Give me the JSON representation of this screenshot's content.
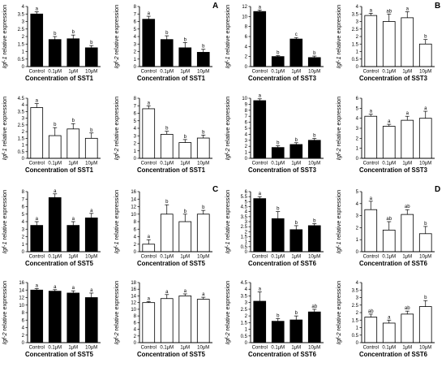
{
  "group_labels": [
    "A",
    "B",
    "C",
    "D"
  ],
  "chart_data": [
    {
      "type": "bar",
      "fill": "#000000",
      "categories": [
        "Control",
        "0.1μM",
        "1μM",
        "10μM"
      ],
      "values": [
        3.5,
        1.8,
        1.85,
        1.25
      ],
      "errors": [
        0.15,
        0.2,
        0.25,
        0.15
      ],
      "letters": [
        "a",
        "b",
        "b",
        "b"
      ],
      "ylim": [
        0,
        4
      ],
      "yticks": [
        "0",
        "0.5",
        "1",
        "1.5",
        "2",
        "2.5",
        "3",
        "3.5",
        "4"
      ],
      "ylabel_italic": "Igf-1",
      "ylabel_rest": " relative expression",
      "xlabel": "Concentration of SST1"
    },
    {
      "type": "bar",
      "fill": "#000000",
      "categories": [
        "Control",
        "0.1μM",
        "1μM",
        "10μM"
      ],
      "values": [
        6.3,
        3.6,
        2.5,
        1.9
      ],
      "errors": [
        0.4,
        0.5,
        0.7,
        0.4
      ],
      "letters": [
        "a",
        "b",
        "b",
        "b"
      ],
      "ylim": [
        0,
        8
      ],
      "yticks": [
        "0",
        "1",
        "2",
        "3",
        "4",
        "5",
        "6",
        "7",
        "8"
      ],
      "ylabel_italic": "Igf-2",
      "ylabel_rest": " relative expression",
      "xlabel": "Concentration of SST1"
    },
    {
      "type": "bar",
      "fill": "#000000",
      "categories": [
        "Control",
        "0.1μM",
        "1μM",
        "10μM"
      ],
      "values": [
        11,
        2,
        5.5,
        1.8
      ],
      "errors": [
        0.3,
        0.2,
        0.3,
        0.3
      ],
      "letters": [
        "a",
        "b",
        "c",
        "b"
      ],
      "ylim": [
        0,
        12
      ],
      "yticks": [
        "0",
        "2",
        "4",
        "6",
        "8",
        "10",
        "12"
      ],
      "ylabel_italic": "Igf-1",
      "ylabel_rest": " relative expression",
      "xlabel": "Concentration of SST3"
    },
    {
      "type": "bar",
      "fill": "#ffffff",
      "categories": [
        "Control",
        "0.1μM",
        "1μM",
        "10μM"
      ],
      "values": [
        3.4,
        3.0,
        3.25,
        1.5
      ],
      "errors": [
        0.15,
        0.5,
        0.4,
        0.3
      ],
      "letters": [
        "a",
        "ab",
        "a",
        "b"
      ],
      "ylim": [
        0,
        4
      ],
      "yticks": [
        "0",
        "0.5",
        "1",
        "1.5",
        "2",
        "2.5",
        "3",
        "3.5",
        "4"
      ],
      "ylabel_italic": "Igf-1",
      "ylabel_rest": " relative expression",
      "xlabel": "Concentration of SST3"
    },
    {
      "type": "bar",
      "fill": "#ffffff",
      "categories": [
        "Control",
        "0.1μM",
        "1μM",
        "10μM"
      ],
      "values": [
        3.8,
        1.7,
        2.2,
        1.5
      ],
      "errors": [
        0.3,
        0.6,
        0.4,
        0.4
      ],
      "letters": [
        "a",
        "b",
        "b",
        "b"
      ],
      "ylim": [
        0,
        4.5
      ],
      "yticks": [
        "0",
        "0.5",
        "1",
        "1.5",
        "2",
        "2.5",
        "3",
        "3.5",
        "4",
        "4.5"
      ],
      "ylabel_italic": "Igf-1",
      "ylabel_rest": " relative expression",
      "xlabel": "Concentration of SST1"
    },
    {
      "type": "bar",
      "fill": "#ffffff",
      "categories": [
        "Control",
        "0.1μM",
        "1μM",
        "10μM"
      ],
      "values": [
        6.6,
        3.2,
        2.1,
        2.7
      ],
      "errors": [
        0.4,
        0.4,
        0.4,
        0.4
      ],
      "letters": [
        "a",
        "b",
        "b",
        "b"
      ],
      "ylim": [
        0,
        8
      ],
      "yticks": [
        "0",
        "1",
        "2",
        "3",
        "4",
        "5",
        "6",
        "7",
        "8"
      ],
      "ylabel_italic": "Igf-2",
      "ylabel_rest": " relative expression",
      "xlabel": "Concentration of SST1"
    },
    {
      "type": "bar",
      "fill": "#000000",
      "categories": [
        "Control",
        "0.1μM",
        "1μM",
        "10μM"
      ],
      "values": [
        9.6,
        1.8,
        2.3,
        3
      ],
      "errors": [
        0.3,
        0.3,
        0.3,
        0.3
      ],
      "letters": [
        "a",
        "b",
        "b",
        "b"
      ],
      "ylim": [
        0,
        10
      ],
      "yticks": [
        "0",
        "1",
        "2",
        "3",
        "4",
        "5",
        "6",
        "7",
        "8",
        "9",
        "10"
      ],
      "ylabel_italic": "Igf-2",
      "ylabel_rest": " relative expression",
      "xlabel": "Concentration of SST3"
    },
    {
      "type": "bar",
      "fill": "#ffffff",
      "categories": [
        "Control",
        "0.1μM",
        "1μM",
        "10μM"
      ],
      "values": [
        4.2,
        3.2,
        3.8,
        4
      ],
      "errors": [
        0.2,
        0.2,
        0.4,
        0.7
      ],
      "letters": [
        "a",
        "a",
        "a",
        "a"
      ],
      "ylim": [
        0,
        6
      ],
      "yticks": [
        "0",
        "1",
        "2",
        "3",
        "4",
        "5",
        "6"
      ],
      "ylabel_italic": "Igf-2",
      "ylabel_rest": " relative expression",
      "xlabel": "Concentration of SST3"
    },
    {
      "type": "bar",
      "fill": "#000000",
      "categories": [
        "Control",
        "0.1μM",
        "1μM",
        "10μM"
      ],
      "values": [
        3.5,
        7.2,
        3.5,
        4.5
      ],
      "errors": [
        0.5,
        0.5,
        0.5,
        0.6
      ],
      "letters": [
        "a",
        "a",
        "a",
        "a"
      ],
      "ylim": [
        0,
        8
      ],
      "yticks": [
        "0",
        "1",
        "2",
        "3",
        "4",
        "5",
        "6",
        "7",
        "8"
      ],
      "ylabel_italic": "Igf-1",
      "ylabel_rest": " relative expression",
      "xlabel": "Concentration of SST5"
    },
    {
      "type": "bar",
      "fill": "#ffffff",
      "categories": [
        "Control",
        "0.1μM",
        "1μM",
        "10μM"
      ],
      "values": [
        2,
        10,
        8,
        10
      ],
      "errors": [
        1.2,
        2.5,
        2,
        1
      ],
      "letters": [
        "a",
        "b",
        "b",
        "b"
      ],
      "ylim": [
        0,
        16
      ],
      "yticks": [
        "0",
        "2",
        "4",
        "6",
        "8",
        "10",
        "12",
        "14",
        "16"
      ],
      "ylabel_italic": "Igf-1",
      "ylabel_rest": " relative expression",
      "xlabel": "Concentration of SST5"
    },
    {
      "type": "bar",
      "fill": "#000000",
      "categories": [
        "Control",
        "0.1μM",
        "1μM",
        "10μM"
      ],
      "values": [
        5.3,
        3.3,
        2.2,
        2.6
      ],
      "errors": [
        0.2,
        0.7,
        0.4,
        0.2
      ],
      "letters": [
        "a",
        "b",
        "b",
        "b"
      ],
      "ylim": [
        0,
        6
      ],
      "yticks": [
        "0",
        "0.5",
        "1",
        "1.5",
        "2",
        "2.5",
        "3",
        "3.5",
        "4",
        "4.5",
        "5",
        "5.5",
        "6"
      ],
      "ylabel_italic": "Igf-1",
      "ylabel_rest": " relative expression",
      "xlabel": "Concentration of SST6"
    },
    {
      "type": "bar",
      "fill": "#ffffff",
      "categories": [
        "Control",
        "0.1μM",
        "1μM",
        "10μM"
      ],
      "values": [
        3.5,
        1.8,
        3.1,
        1.5
      ],
      "errors": [
        0.7,
        0.7,
        0.4,
        0.6
      ],
      "letters": [
        "a",
        "ab",
        "ab",
        "b"
      ],
      "ylim": [
        0,
        5
      ],
      "yticks": [
        "0",
        "1",
        "2",
        "3",
        "4",
        "5"
      ],
      "ylabel_italic": "Igf-1",
      "ylabel_rest": " relative expression",
      "xlabel": "Concentration of SST6"
    },
    {
      "type": "bar",
      "fill": "#000000",
      "categories": [
        "Control",
        "0.1μM",
        "1μM",
        "10μM"
      ],
      "values": [
        14,
        13.7,
        13.2,
        12
      ],
      "errors": [
        0.4,
        0.4,
        0.6,
        1.2
      ],
      "letters": [
        "a",
        "a",
        "a",
        "a"
      ],
      "ylim": [
        0,
        16
      ],
      "yticks": [
        "0",
        "2",
        "4",
        "6",
        "8",
        "10",
        "12",
        "14",
        "16"
      ],
      "ylabel_italic": "Igf-2",
      "ylabel_rest": " relative expression",
      "xlabel": "Concentration of SST5"
    },
    {
      "type": "bar",
      "fill": "#ffffff",
      "categories": [
        "Control",
        "0.1μM",
        "1μM",
        "10μM"
      ],
      "values": [
        12,
        13.2,
        14,
        13
      ],
      "errors": [
        0.3,
        1.2,
        0.6,
        0.6
      ],
      "letters": [
        "a",
        "a",
        "a",
        "a"
      ],
      "ylim": [
        0,
        18
      ],
      "yticks": [
        "0",
        "2",
        "4",
        "6",
        "8",
        "10",
        "12",
        "14",
        "16",
        "18"
      ],
      "ylabel_italic": "Igf-2",
      "ylabel_rest": " relative expression",
      "xlabel": "Concentration of SST5"
    },
    {
      "type": "bar",
      "fill": "#000000",
      "categories": [
        "Control",
        "0.1μM",
        "1μM",
        "10μM"
      ],
      "values": [
        3.1,
        1.6,
        1.7,
        2.3
      ],
      "errors": [
        0.7,
        0.2,
        0.3,
        0.2
      ],
      "letters": [
        "a",
        "b",
        "b",
        "ab"
      ],
      "ylim": [
        0,
        4.5
      ],
      "yticks": [
        "0",
        "0.5",
        "1",
        "1.5",
        "2",
        "2.5",
        "3",
        "3.5",
        "4",
        "4.5"
      ],
      "ylabel_italic": "Igf-2",
      "ylabel_rest": " relative expression",
      "xlabel": "Concentration of SST6"
    },
    {
      "type": "bar",
      "fill": "#ffffff",
      "categories": [
        "Control",
        "0.1μM",
        "1μM",
        "10μM"
      ],
      "values": [
        1.7,
        1.3,
        1.9,
        2.4
      ],
      "errors": [
        0.2,
        0.2,
        0.2,
        0.4
      ],
      "letters": [
        "ab",
        "a",
        "ab",
        "b"
      ],
      "ylim": [
        0,
        4
      ],
      "yticks": [
        "0",
        "0.5",
        "1",
        "1.5",
        "2",
        "2.5",
        "3",
        "3.5",
        "4"
      ],
      "ylabel_italic": "Igf-2",
      "ylabel_rest": " relative expression",
      "xlabel": "Concentration of SST6"
    }
  ]
}
